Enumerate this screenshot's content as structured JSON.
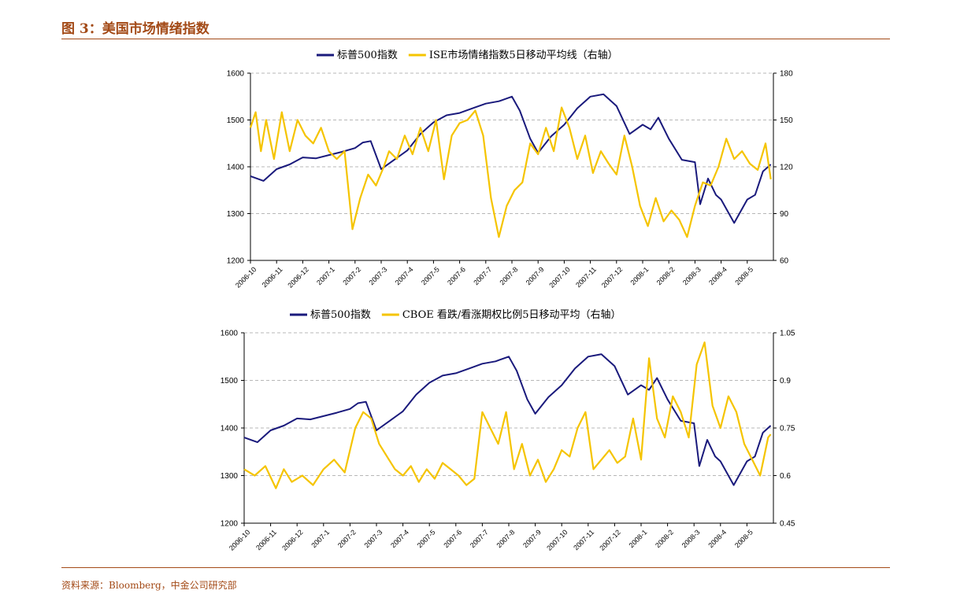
{
  "figure": {
    "title": "图 3：美国市场情绪指数",
    "source": "资料来源：Bloomberg，中金公司研究部"
  },
  "colors": {
    "spx": "#1a1a7c",
    "right": "#f5c400",
    "title": "#a34a17",
    "grid": "#a0a0a0"
  },
  "chart_data": [
    {
      "type": "line",
      "legend": [
        "标普500指数",
        "ISE市场情绪指数5日移动平均线（右轴）"
      ],
      "x_labels": [
        "2006-10",
        "2006-11",
        "2006-12",
        "2007-1",
        "2007-2",
        "2007-3",
        "2007-4",
        "2007-5",
        "2007-6",
        "2007-7",
        "2007-8",
        "2007-9",
        "2007-10",
        "2007-11",
        "2007-12",
        "2008-1",
        "2008-2",
        "2008-3",
        "2008-4",
        "2008-5"
      ],
      "y_left": {
        "ticks": [
          "1200",
          "1300",
          "1400",
          "1500",
          "1600"
        ],
        "min": 1200,
        "max": 1600
      },
      "y_right": {
        "ticks": [
          "60",
          "90",
          "120",
          "150",
          "180"
        ],
        "min": 60,
        "max": 180
      },
      "grid": "dashed",
      "series": [
        {
          "name": "标普500指数",
          "axis": "left",
          "color": "#1a1a7c",
          "x": [
            0,
            0.5,
            1,
            1.5,
            2,
            2.5,
            3,
            3.5,
            4,
            4.3,
            4.6,
            5,
            5.5,
            6,
            6.5,
            7,
            7.5,
            8,
            8.5,
            9,
            9.5,
            10,
            10.3,
            10.7,
            11,
            11.5,
            12,
            12.5,
            13,
            13.5,
            14,
            14.5,
            15,
            15.3,
            15.6,
            16,
            16.5,
            17,
            17.2,
            17.5,
            17.8,
            18,
            18.5,
            19,
            19.3,
            19.6,
            19.9
          ],
          "values": [
            1380,
            1370,
            1395,
            1405,
            1420,
            1418,
            1425,
            1432,
            1440,
            1452,
            1455,
            1395,
            1415,
            1435,
            1470,
            1495,
            1510,
            1515,
            1525,
            1535,
            1540,
            1550,
            1520,
            1460,
            1430,
            1465,
            1490,
            1525,
            1550,
            1555,
            1530,
            1470,
            1490,
            1480,
            1505,
            1460,
            1415,
            1410,
            1320,
            1375,
            1340,
            1330,
            1280,
            1330,
            1340,
            1390,
            1405
          ]
        },
        {
          "name": "ISE市场情绪指数5日移动平均线（右轴）",
          "axis": "right",
          "color": "#f5c400",
          "x": [
            0,
            0.2,
            0.4,
            0.6,
            0.9,
            1.2,
            1.5,
            1.8,
            2.1,
            2.4,
            2.7,
            3,
            3.3,
            3.6,
            3.9,
            4.2,
            4.5,
            4.8,
            5.1,
            5.3,
            5.6,
            5.9,
            6.2,
            6.5,
            6.8,
            7.1,
            7.4,
            7.7,
            8,
            8.3,
            8.6,
            8.9,
            9.2,
            9.5,
            9.8,
            10.1,
            10.4,
            10.7,
            11,
            11.3,
            11.6,
            11.9,
            12.2,
            12.5,
            12.8,
            13.1,
            13.4,
            13.7,
            14,
            14.3,
            14.6,
            14.9,
            15.2,
            15.5,
            15.8,
            16.1,
            16.4,
            16.7,
            17,
            17.3,
            17.6,
            17.9,
            18.2,
            18.5,
            18.8,
            19.1,
            19.4,
            19.7,
            19.9
          ],
          "values": [
            145,
            155,
            130,
            150,
            125,
            155,
            130,
            150,
            140,
            135,
            145,
            130,
            125,
            130,
            80,
            100,
            115,
            108,
            120,
            130,
            125,
            140,
            128,
            145,
            130,
            150,
            112,
            140,
            148,
            150,
            156,
            140,
            100,
            75,
            95,
            105,
            110,
            135,
            128,
            145,
            130,
            158,
            145,
            125,
            140,
            116,
            130,
            122,
            115,
            140,
            120,
            95,
            82,
            100,
            85,
            92,
            86,
            75,
            95,
            110,
            108,
            120,
            138,
            125,
            130,
            122,
            118,
            135,
            112
          ]
        }
      ]
    },
    {
      "type": "line",
      "legend": [
        "标普500指数",
        "CBOE 看跌/看涨期权比例5日移动平均（右轴）"
      ],
      "x_labels": [
        "2006-10",
        "2006-11",
        "2006-12",
        "2007-1",
        "2007-2",
        "2007-3",
        "2007-4",
        "2007-5",
        "2007-6",
        "2007-7",
        "2007-8",
        "2007-9",
        "2007-10",
        "2007-11",
        "2007-12",
        "2008-1",
        "2008-2",
        "2008-3",
        "2008-4",
        "2008-5"
      ],
      "y_left": {
        "ticks": [
          "1200",
          "1300",
          "1400",
          "1500",
          "1600"
        ],
        "min": 1200,
        "max": 1600
      },
      "y_right": {
        "ticks": [
          "0.45",
          "0.6",
          "0.75",
          "0.9",
          "1.05"
        ],
        "min": 0.45,
        "max": 1.05
      },
      "grid": "dashed",
      "series": [
        {
          "name": "标普500指数",
          "axis": "left",
          "color": "#1a1a7c",
          "x": [
            0,
            0.5,
            1,
            1.5,
            2,
            2.5,
            3,
            3.5,
            4,
            4.3,
            4.6,
            5,
            5.5,
            6,
            6.5,
            7,
            7.5,
            8,
            8.5,
            9,
            9.5,
            10,
            10.3,
            10.7,
            11,
            11.5,
            12,
            12.5,
            13,
            13.5,
            14,
            14.5,
            15,
            15.3,
            15.6,
            16,
            16.5,
            17,
            17.2,
            17.5,
            17.8,
            18,
            18.5,
            19,
            19.3,
            19.6,
            19.9
          ],
          "values": [
            1380,
            1370,
            1395,
            1405,
            1420,
            1418,
            1425,
            1432,
            1440,
            1452,
            1455,
            1395,
            1415,
            1435,
            1470,
            1495,
            1510,
            1515,
            1525,
            1535,
            1540,
            1550,
            1520,
            1460,
            1430,
            1465,
            1490,
            1525,
            1550,
            1555,
            1530,
            1470,
            1490,
            1480,
            1505,
            1460,
            1415,
            1410,
            1320,
            1375,
            1340,
            1330,
            1280,
            1330,
            1340,
            1390,
            1405
          ]
        },
        {
          "name": "CBOE 看跌/看涨期权比例5日移动平均（右轴）",
          "axis": "right",
          "color": "#f5c400",
          "x": [
            0,
            0.4,
            0.8,
            1.2,
            1.5,
            1.8,
            2.2,
            2.6,
            3,
            3.4,
            3.8,
            4.2,
            4.5,
            4.8,
            5.1,
            5.4,
            5.7,
            6,
            6.3,
            6.6,
            6.9,
            7.2,
            7.5,
            7.8,
            8.1,
            8.4,
            8.7,
            9,
            9.3,
            9.6,
            9.9,
            10.2,
            10.5,
            10.8,
            11.1,
            11.4,
            11.7,
            12,
            12.3,
            12.6,
            12.9,
            13.2,
            13.5,
            13.8,
            14.1,
            14.4,
            14.7,
            15,
            15.3,
            15.6,
            15.9,
            16.2,
            16.5,
            16.8,
            17.1,
            17.4,
            17.7,
            18,
            18.3,
            18.6,
            18.9,
            19.2,
            19.5,
            19.8,
            19.9
          ],
          "values": [
            0.62,
            0.6,
            0.63,
            0.56,
            0.62,
            0.58,
            0.6,
            0.57,
            0.62,
            0.65,
            0.61,
            0.75,
            0.8,
            0.78,
            0.7,
            0.66,
            0.62,
            0.6,
            0.63,
            0.58,
            0.62,
            0.59,
            0.64,
            0.62,
            0.6,
            0.57,
            0.59,
            0.8,
            0.75,
            0.7,
            0.8,
            0.62,
            0.7,
            0.6,
            0.65,
            0.58,
            0.62,
            0.68,
            0.66,
            0.75,
            0.8,
            0.62,
            0.65,
            0.68,
            0.64,
            0.66,
            0.78,
            0.65,
            0.97,
            0.78,
            0.72,
            0.85,
            0.8,
            0.72,
            0.95,
            1.02,
            0.82,
            0.75,
            0.85,
            0.8,
            0.7,
            0.65,
            0.6,
            0.72,
            0.73
          ]
        }
      ]
    }
  ]
}
